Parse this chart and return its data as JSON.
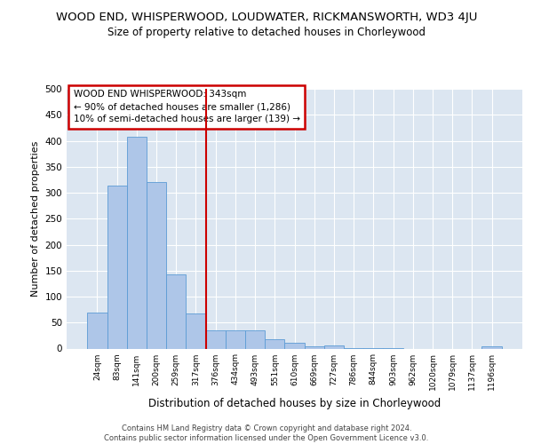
{
  "title": "WOOD END, WHISPERWOOD, LOUDWATER, RICKMANSWORTH, WD3 4JU",
  "subtitle": "Size of property relative to detached houses in Chorleywood",
  "xlabel": "Distribution of detached houses by size in Chorleywood",
  "ylabel": "Number of detached properties",
  "footer1": "Contains HM Land Registry data © Crown copyright and database right 2024.",
  "footer2": "Contains public sector information licensed under the Open Government Licence v3.0.",
  "bar_labels": [
    "24sqm",
    "83sqm",
    "141sqm",
    "200sqm",
    "259sqm",
    "317sqm",
    "376sqm",
    "434sqm",
    "493sqm",
    "551sqm",
    "610sqm",
    "669sqm",
    "727sqm",
    "786sqm",
    "844sqm",
    "903sqm",
    "962sqm",
    "1020sqm",
    "1079sqm",
    "1137sqm",
    "1196sqm"
  ],
  "bar_values": [
    70,
    313,
    408,
    320,
    143,
    68,
    35,
    35,
    35,
    18,
    11,
    5,
    6,
    1,
    1,
    1,
    0,
    0,
    0,
    0,
    4
  ],
  "bar_color": "#aec6e8",
  "bar_edge_color": "#5b9bd5",
  "vline_x": 5.5,
  "vline_color": "#cc0000",
  "annotation_line1": "WOOD END WHISPERWOOD: 343sqm",
  "annotation_line2": "← 90% of detached houses are smaller (1,286)",
  "annotation_line3": "10% of semi-detached houses are larger (139) →",
  "annotation_box_facecolor": "#ffffff",
  "annotation_box_edgecolor": "#cc0000",
  "ylim": [
    0,
    500
  ],
  "yticks": [
    0,
    50,
    100,
    150,
    200,
    250,
    300,
    350,
    400,
    450,
    500
  ],
  "plot_bg": "#dce6f1",
  "grid_color": "#ffffff"
}
